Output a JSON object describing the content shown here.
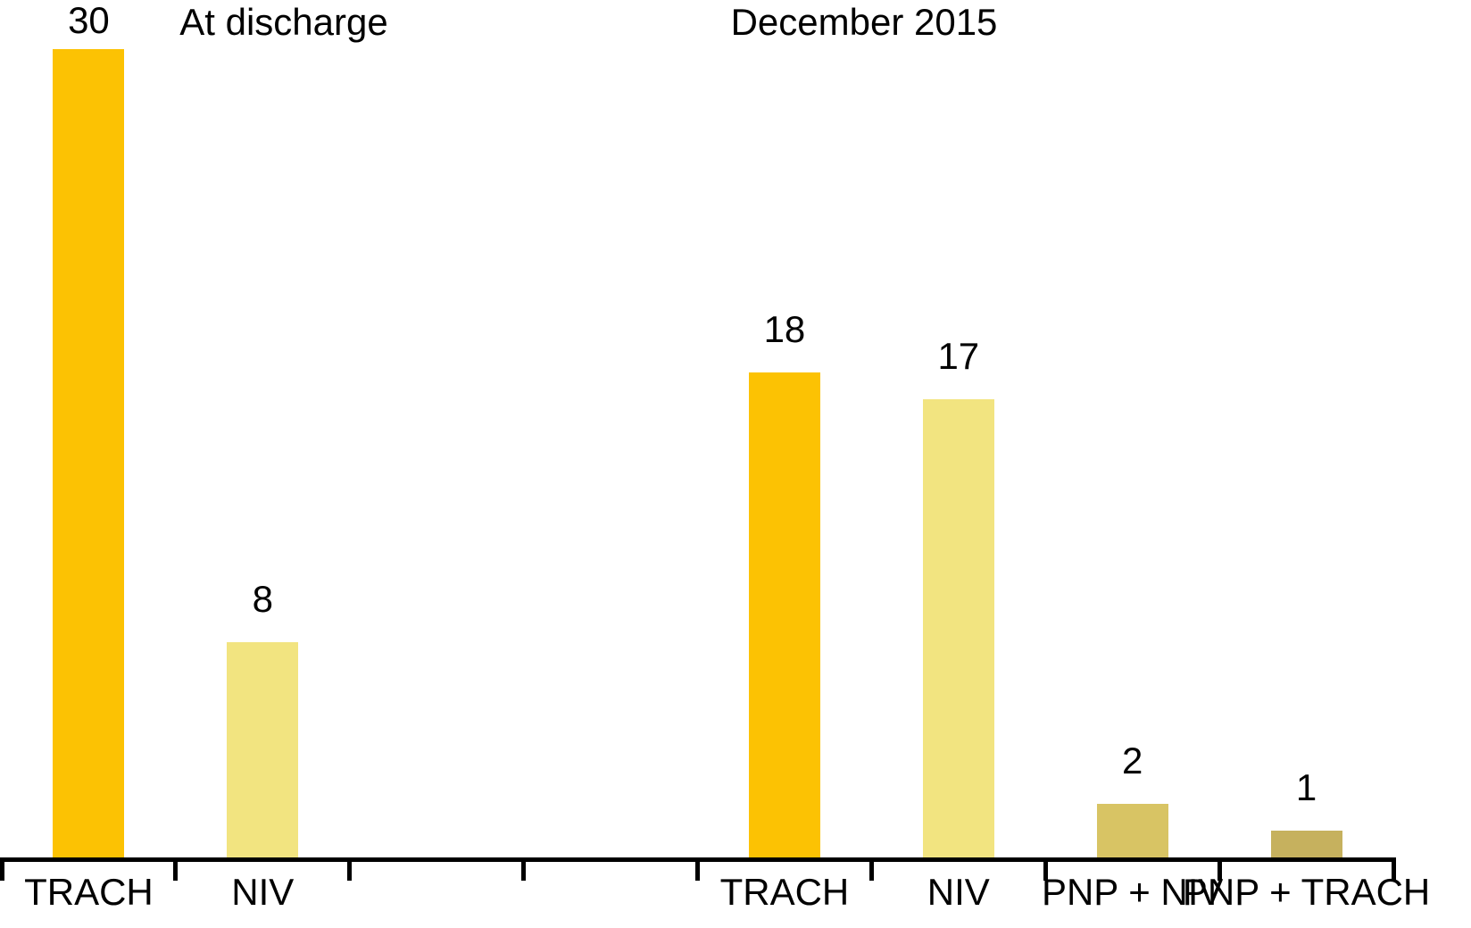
{
  "chart_data": {
    "type": "bar",
    "group_titles": [
      "At discharge",
      "December 2015"
    ],
    "bars": [
      {
        "slot": 0,
        "category": "TRACH",
        "value": 30,
        "color": "#FCC203",
        "group": "At discharge"
      },
      {
        "slot": 1,
        "category": "NIV",
        "value": 8,
        "color": "#F2E480",
        "group": "At discharge"
      },
      {
        "slot": 4,
        "category": "TRACH",
        "value": 18,
        "color": "#FCC203",
        "group": "December 2015"
      },
      {
        "slot": 5,
        "category": "NIV",
        "value": 17,
        "color": "#F2E480",
        "group": "December 2015"
      },
      {
        "slot": 6,
        "category": "PNP + NIV",
        "value": 2,
        "color": "#D8C464",
        "group": "December 2015"
      },
      {
        "slot": 7,
        "category": "PNP + TRACH",
        "value": 1,
        "color": "#C6B15E",
        "group": "December 2015"
      }
    ],
    "x_tick_slots": 8,
    "ylim": [
      0,
      30
    ],
    "grid": false,
    "legend": null,
    "axis_color": "#000000",
    "text_color": "#000000",
    "value_labels_shown": true
  }
}
